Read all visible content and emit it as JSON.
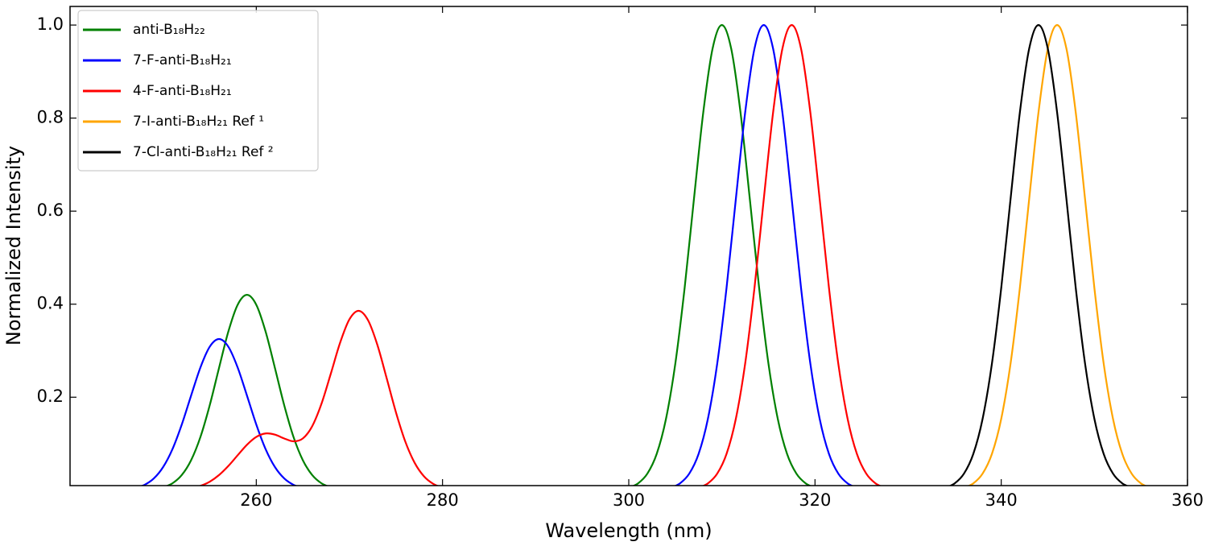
{
  "chart_data": {
    "type": "line",
    "xlabel": "Wavelength (nm)",
    "ylabel": "Normalized Intensity",
    "xlim": [
      240,
      360
    ],
    "ylim": [
      0.01,
      1.04
    ],
    "xticks": [
      260,
      280,
      300,
      320,
      340,
      360
    ],
    "yticks": [
      0.2,
      0.4,
      0.6,
      0.8,
      {
        "value": 1,
        "label": "1.0"
      }
    ],
    "legend": "upper left",
    "series": [
      {
        "name": "anti-B₁₈H₂₂",
        "color": "#008000",
        "x": [
          250,
          251,
          252,
          253,
          254,
          255,
          256,
          257,
          258,
          259,
          260,
          261,
          262,
          263,
          264,
          265,
          266,
          267,
          268,
          285,
          300,
          301,
          302,
          303,
          304,
          305,
          306,
          307,
          308,
          309,
          310,
          311,
          312,
          313,
          314,
          315,
          316,
          317,
          318,
          319,
          320
        ],
        "values": [
          0.0062,
          0.015,
          0.0328,
          0.0646,
          0.1144,
          0.1827,
          0.263,
          0.3411,
          0.3987,
          0.42,
          0.3987,
          0.3411,
          0.263,
          0.1827,
          0.1144,
          0.0646,
          0.0328,
          0.015,
          0.0062,
          null,
          0.0055,
          0.0148,
          0.0358,
          0.0781,
          0.1537,
          0.2723,
          0.435,
          0.6261,
          0.8121,
          0.9493,
          1,
          0.9493,
          0.8121,
          0.6261,
          0.435,
          0.2723,
          0.1537,
          0.0781,
          0.0358,
          0.0148,
          0.0055
        ]
      },
      {
        "name": "7-F-anti-B₁₈H₂₁",
        "color": "#0000ff",
        "x": [
          247,
          248,
          249,
          250,
          251,
          252,
          253,
          254,
          255,
          256,
          257,
          258,
          259,
          260,
          261,
          262,
          263,
          264,
          265,
          285,
          304.5,
          305.5,
          306.5,
          307.5,
          308.5,
          309.5,
          310.5,
          311.5,
          312.5,
          313.5,
          314.5,
          315.5,
          316.5,
          317.5,
          318.5,
          319.5,
          320.5,
          321.5,
          322.5,
          323.5,
          324.5
        ],
        "values": [
          0.0048,
          0.0116,
          0.0254,
          0.05,
          0.0885,
          0.1414,
          0.2035,
          0.2639,
          0.3085,
          0.325,
          0.3085,
          0.2639,
          0.2035,
          0.1414,
          0.0885,
          0.05,
          0.0254,
          0.0116,
          0.0048,
          null,
          0.0055,
          0.0148,
          0.0358,
          0.0781,
          0.1537,
          0.2723,
          0.435,
          0.6261,
          0.8121,
          0.9493,
          1,
          0.9493,
          0.8121,
          0.6261,
          0.435,
          0.2723,
          0.1537,
          0.0781,
          0.0358,
          0.0148,
          0.0055
        ]
      },
      {
        "name": "4-F-anti-B₁₈H₂₁",
        "color": "#ff0000",
        "x": [
          252,
          253,
          254,
          255,
          256,
          257,
          258,
          259,
          260,
          261,
          262,
          263,
          264,
          265,
          266,
          267,
          268,
          269,
          270,
          271,
          272,
          273,
          274,
          275,
          276,
          277,
          278,
          279,
          280,
          281,
          295,
          307.5,
          308.5,
          309.5,
          310.5,
          311.5,
          312.5,
          313.5,
          314.5,
          315.5,
          316.5,
          317.5,
          318.5,
          319.5,
          320.5,
          321.5,
          322.5,
          323.5,
          324.5,
          325.5,
          326.5,
          327.5
        ],
        "values": [
          0.0018,
          0.0043,
          0.0094,
          0.0184,
          0.0327,
          0.0522,
          0.0752,
          0.0978,
          0.1146,
          0.1221,
          0.1196,
          0.1113,
          0.1052,
          0.1114,
          0.1375,
          0.1859,
          0.2504,
          0.317,
          0.3673,
          0.3857,
          0.3655,
          0.3127,
          0.241,
          0.1675,
          0.1048,
          0.0592,
          0.0301,
          0.0138,
          0.0057,
          0.0021,
          null,
          0.0055,
          0.0148,
          0.0358,
          0.0781,
          0.1537,
          0.2723,
          0.435,
          0.6261,
          0.8121,
          0.9493,
          1,
          0.9493,
          0.8121,
          0.6261,
          0.435,
          0.2723,
          0.1537,
          0.0781,
          0.0358,
          0.0148,
          0.0055
        ]
      },
      {
        "name": "7-I-anti-B₁₈H₂₁ Ref ¹",
        "color": "#ffa500",
        "x": [
          336,
          337,
          338,
          339,
          340,
          341,
          342,
          343,
          344,
          345,
          346,
          347,
          348,
          349,
          350,
          351,
          352,
          353,
          354,
          355,
          356
        ],
        "values": [
          0.0055,
          0.0148,
          0.0358,
          0.0781,
          0.1537,
          0.2723,
          0.435,
          0.6261,
          0.8121,
          0.9493,
          1,
          0.9493,
          0.8121,
          0.6261,
          0.435,
          0.2723,
          0.1537,
          0.0781,
          0.0358,
          0.0148,
          0.0055
        ]
      },
      {
        "name": "7-Cl-anti-B₁₈H₂₁ Ref ²",
        "color": "#000000",
        "x": [
          334,
          335,
          336,
          337,
          338,
          339,
          340,
          341,
          342,
          343,
          344,
          345,
          346,
          347,
          348,
          349,
          350,
          351,
          352,
          353,
          354
        ],
        "values": [
          0.0055,
          0.0148,
          0.0358,
          0.0781,
          0.1537,
          0.2723,
          0.435,
          0.6261,
          0.8121,
          0.9493,
          1,
          0.9493,
          0.8121,
          0.6261,
          0.435,
          0.2723,
          0.1537,
          0.0781,
          0.0358,
          0.0148,
          0.0055
        ]
      }
    ]
  }
}
